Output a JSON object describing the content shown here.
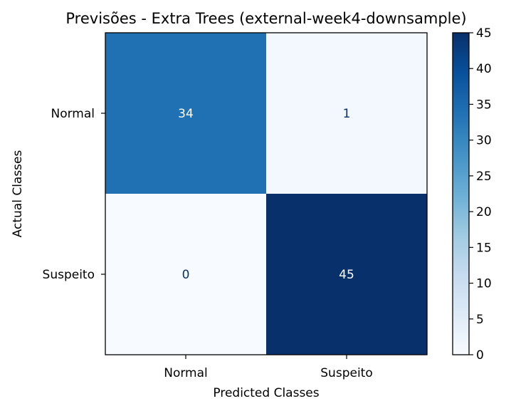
{
  "chart_data": {
    "type": "heatmap",
    "title": "Previsões - Extra Trees (external-week4-downsample)",
    "xlabel": "Predicted Classes",
    "ylabel": "Actual Classes",
    "x_categories": [
      "Normal",
      "Suspeito"
    ],
    "y_categories": [
      "Normal",
      "Suspeito"
    ],
    "values": [
      [
        34,
        1
      ],
      [
        0,
        45
      ]
    ],
    "colormap": "Blues",
    "colorbar": {
      "range": [
        0,
        45
      ],
      "ticks": [
        "0",
        "5",
        "10",
        "15",
        "20",
        "25",
        "30",
        "35",
        "40",
        "45"
      ]
    },
    "grid": false
  }
}
